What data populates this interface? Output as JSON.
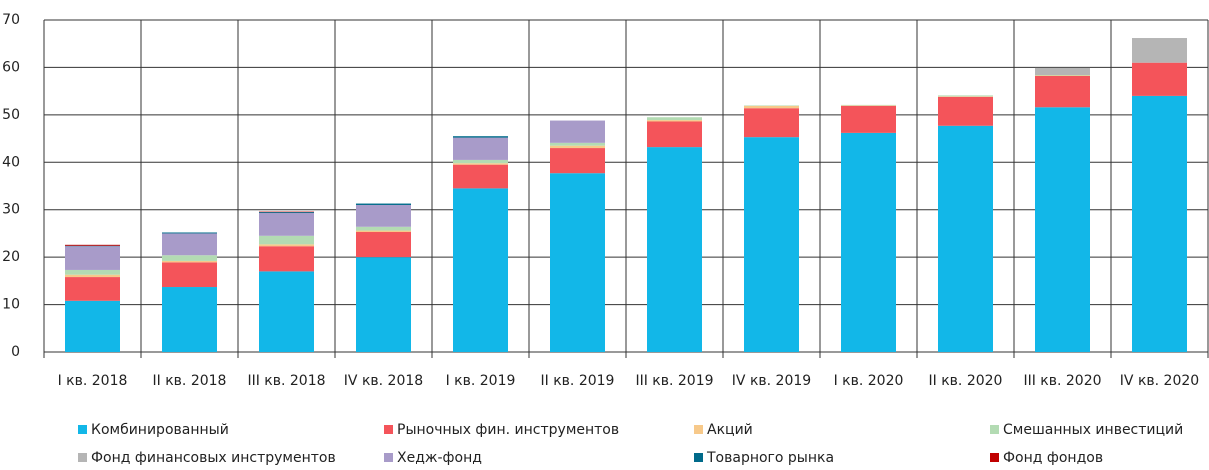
{
  "chart_data": {
    "type": "stacked_bar",
    "categories": [
      "I кв. 2018",
      "II кв. 2018",
      "III кв. 2018",
      "IV кв. 2018",
      "I кв. 2019",
      "II кв. 2019",
      "III кв. 2019",
      "IV кв. 2019",
      "I кв. 2020",
      "II кв. 2020",
      "III кв. 2020",
      "IV кв. 2020"
    ],
    "series": [
      {
        "name": "Комбинированный",
        "color": "#12b7e8",
        "values": [
          10.8,
          13.7,
          17,
          20,
          34.5,
          37.7,
          43.2,
          45.3,
          46.2,
          47.7,
          51.6,
          54
        ]
      },
      {
        "name": "Рыночных фин. инструментов",
        "color": "#f4545a",
        "values": [
          5,
          5.2,
          5.3,
          5.3,
          5,
          5.3,
          5.4,
          6.1,
          5.7,
          6.1,
          6.6,
          7
        ]
      },
      {
        "name": "Акций",
        "color": "#f7c98a",
        "values": [
          0.5,
          0.3,
          0.4,
          0.3,
          0.3,
          0.5,
          0.3,
          0.5,
          0.1,
          0.1,
          0.1,
          0
        ]
      },
      {
        "name": "Смешанных инвестиций",
        "color": "#b3dbb3",
        "values": [
          1,
          1.2,
          1.8,
          0.8,
          0.7,
          0.6,
          0.6,
          0.1,
          0.1,
          0.2,
          0.1,
          0
        ]
      },
      {
        "name": "Фонд финансовых инструментов",
        "color": "#b5b5b5",
        "values": [
          0,
          0,
          0,
          0,
          0,
          0,
          0,
          0,
          0,
          0,
          1.5,
          5.2
        ]
      },
      {
        "name": "Хедж-фонд",
        "color": "#a89bc9",
        "values": [
          5,
          4.6,
          4.8,
          4.6,
          4.7,
          4.7,
          0,
          0,
          0,
          0,
          0,
          0
        ]
      },
      {
        "name": "Товарного рынка",
        "color": "#006a8a",
        "values": [
          0.1,
          0.2,
          0.2,
          0.3,
          0.3,
          0,
          0,
          0,
          0,
          0,
          0,
          0
        ]
      },
      {
        "name": "Фонд фондов",
        "color": "#c00000",
        "values": [
          0.2,
          0,
          0.1,
          0,
          0,
          0,
          0,
          0,
          0,
          0,
          0,
          0
        ]
      }
    ],
    "ylim": [
      0,
      70
    ],
    "yticks": [
      0,
      10,
      20,
      30,
      40,
      50,
      60,
      70
    ],
    "grid": true,
    "legend": "bottom"
  }
}
